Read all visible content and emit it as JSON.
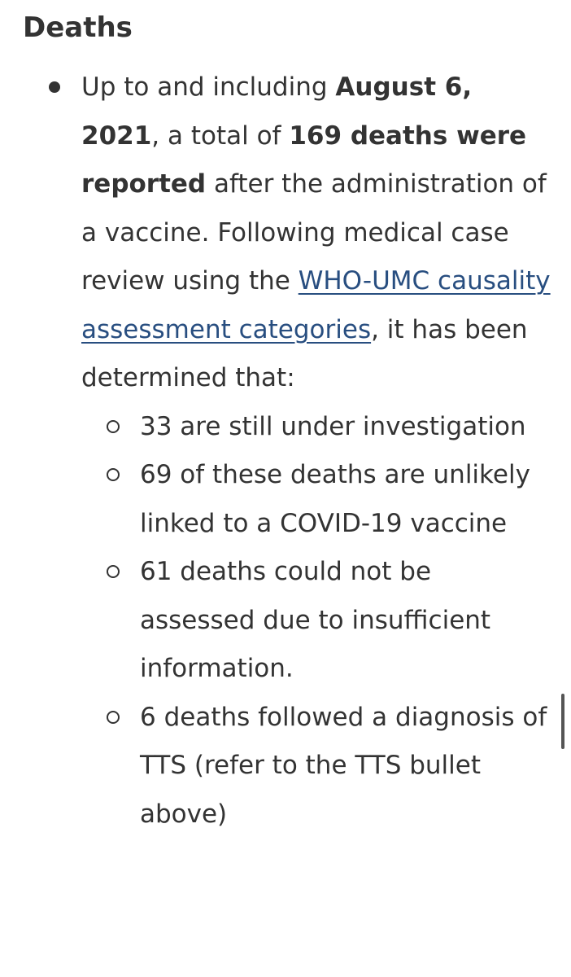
{
  "section": {
    "heading": "Deaths"
  },
  "summary": {
    "t1": "Up to and including ",
    "b1": "August 6, 2021",
    "t2": ", a total of ",
    "b2": "169 deaths were reported",
    "t3": " after the administration of a vaccine. Following medical case review using the ",
    "link": "WHO-UMC causality assessment categories",
    "t4": ", it has been determined that:"
  },
  "findings": [
    "33 are still under investigation",
    "69 of these deaths are unlikely linked to a COVID-19 vaccine",
    "61 deaths could not be assessed due to insufficient information.",
    "6 deaths followed a diagnosis of TTS (refer to the TTS bullet above)"
  ]
}
